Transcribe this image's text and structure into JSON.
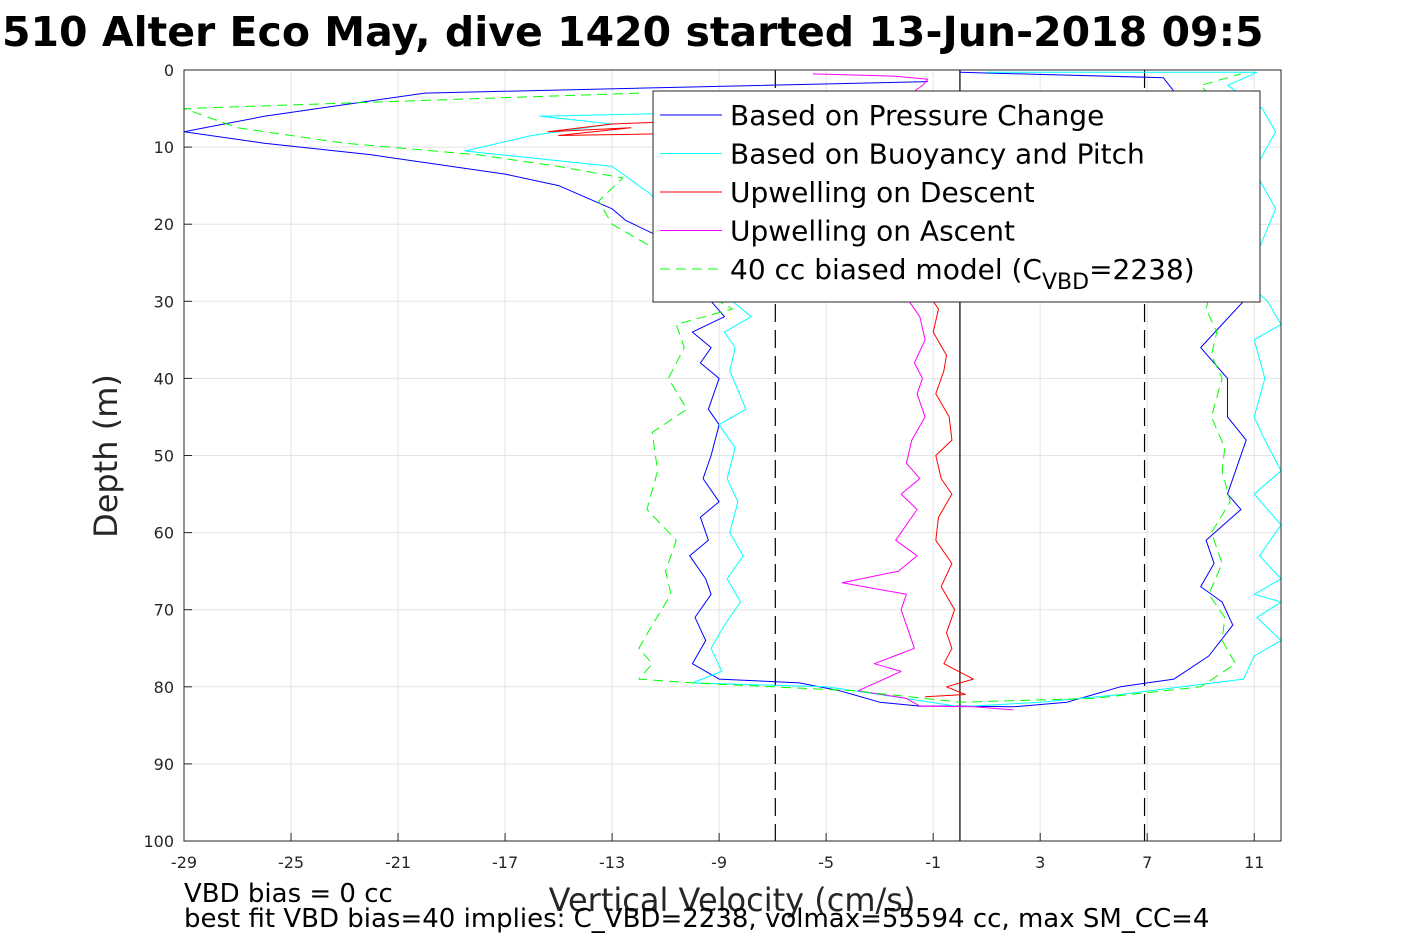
{
  "chart_data": {
    "type": "line",
    "title": "510 Alter Eco May, dive 1420 started 13-Jun-2018 09:5",
    "xlabel": "Vertical Velocity (cm/s)",
    "ylabel": "Depth (m)",
    "xlim": [
      -29,
      12
    ],
    "ylim": [
      0,
      100
    ],
    "y_reversed": true,
    "grid": true,
    "x_ticks": [
      -29,
      -25,
      -21,
      -17,
      -13,
      -9,
      -5,
      -1,
      3,
      7,
      11
    ],
    "y_ticks": [
      0,
      10,
      20,
      30,
      40,
      50,
      60,
      70,
      80,
      90,
      100
    ],
    "legend_position": "top-right",
    "legend": [
      {
        "label": "Based on Pressure Change",
        "color": "#0000ff",
        "dash": false
      },
      {
        "label": "Based on Buoyancy and Pitch",
        "color": "#00ffff",
        "dash": false
      },
      {
        "label": "Upwelling on Descent",
        "color": "#ff0000",
        "dash": false
      },
      {
        "label": "Upwelling on Ascent",
        "color": "#ff00ff",
        "dash": false
      },
      {
        "label_prefix": "40 cc biased model (C",
        "label_sub": "VBD",
        "label_suffix": "=2238)",
        "color": "#00ff00",
        "dash": true
      }
    ],
    "reference_lines": [
      {
        "x": -6.9,
        "style": "dashed",
        "color": "#000000"
      },
      {
        "x": 0,
        "style": "solid",
        "color": "#000000"
      },
      {
        "x": 6.9,
        "style": "dashed",
        "color": "#000000"
      }
    ],
    "series": [
      {
        "name": "Based on Pressure Change",
        "color": "#0000ff",
        "dash": false,
        "points": [
          [
            -1.2,
            1.5
          ],
          [
            -20,
            3
          ],
          [
            -26,
            6
          ],
          [
            -29,
            8
          ],
          [
            -26,
            9.5
          ],
          [
            -22,
            11
          ],
          [
            -17,
            13.5
          ],
          [
            -15,
            15
          ],
          [
            -13,
            18
          ],
          [
            -12.5,
            19.5
          ],
          [
            -11,
            22
          ],
          [
            -10,
            25
          ],
          [
            -9.5,
            28
          ],
          [
            -9.3,
            30
          ],
          [
            -8.8,
            32
          ],
          [
            -10,
            34
          ],
          [
            -9.3,
            36
          ],
          [
            -9.7,
            38
          ],
          [
            -9,
            40
          ],
          [
            -9.4,
            44
          ],
          [
            -9,
            46
          ],
          [
            -9.3,
            50
          ],
          [
            -9.6,
            53
          ],
          [
            -9,
            56
          ],
          [
            -9.7,
            58
          ],
          [
            -9.4,
            61
          ],
          [
            -10.1,
            63
          ],
          [
            -9.5,
            66
          ],
          [
            -9.3,
            68
          ],
          [
            -9.9,
            71
          ],
          [
            -9.5,
            74
          ],
          [
            -10,
            77
          ],
          [
            -9,
            79
          ],
          [
            -6,
            79.5
          ],
          [
            -4.5,
            80.5
          ],
          [
            -4,
            81
          ],
          [
            -3,
            82
          ],
          [
            -1.5,
            82.5
          ],
          [
            0,
            82.5
          ],
          [
            2,
            82.6
          ],
          [
            4,
            82
          ],
          [
            5,
            81
          ],
          [
            6,
            80
          ],
          [
            7,
            79.5
          ],
          [
            8,
            79
          ],
          [
            9.3,
            76
          ],
          [
            10.2,
            72
          ],
          [
            9.8,
            69
          ],
          [
            9,
            67
          ],
          [
            9.5,
            64
          ],
          [
            9.2,
            61
          ],
          [
            10.5,
            57
          ],
          [
            10,
            55
          ],
          [
            10.3,
            52
          ],
          [
            10.7,
            48
          ],
          [
            10,
            45
          ],
          [
            10,
            40
          ],
          [
            9,
            36
          ],
          [
            9.8,
            33
          ],
          [
            10.6,
            30
          ],
          [
            10.4,
            28
          ],
          [
            9.6,
            24
          ],
          [
            9.3,
            20
          ],
          [
            9.8,
            15
          ],
          [
            10.5,
            10
          ],
          [
            8.5,
            5
          ],
          [
            7.6,
            1
          ],
          [
            0,
            0.3
          ]
        ]
      },
      {
        "name": "Based on Buoyancy and Pitch",
        "color": "#00ffff",
        "dash": false,
        "points": [
          [
            -3,
            5
          ],
          [
            -15.7,
            6
          ],
          [
            -13,
            7
          ],
          [
            -16,
            8.5
          ],
          [
            -18.5,
            10.5
          ],
          [
            -13,
            12.5
          ],
          [
            -11.6,
            16
          ],
          [
            -10.5,
            20
          ],
          [
            -9,
            24
          ],
          [
            -8.7,
            27
          ],
          [
            -8.5,
            30
          ],
          [
            -7.8,
            32
          ],
          [
            -8.8,
            34
          ],
          [
            -8.4,
            36
          ],
          [
            -8.6,
            39
          ],
          [
            -8.0,
            44
          ],
          [
            -9.0,
            46
          ],
          [
            -8.4,
            49
          ],
          [
            -8.7,
            53
          ],
          [
            -8.3,
            56
          ],
          [
            -8.6,
            60
          ],
          [
            -8.1,
            63
          ],
          [
            -8.7,
            66
          ],
          [
            -8.2,
            69
          ],
          [
            -8.8,
            72
          ],
          [
            -9.3,
            75
          ],
          [
            -8.9,
            78
          ],
          [
            -10,
            79.5
          ],
          [
            -5,
            80
          ],
          [
            -3,
            81
          ],
          [
            0,
            82.6
          ],
          [
            3,
            82
          ],
          [
            6,
            81
          ],
          [
            10.6,
            79
          ],
          [
            11,
            76
          ],
          [
            12,
            74
          ],
          [
            11.1,
            71
          ],
          [
            12,
            69
          ],
          [
            11,
            68
          ],
          [
            12,
            66
          ],
          [
            11.2,
            63
          ],
          [
            12,
            59
          ],
          [
            11,
            55
          ],
          [
            12,
            52
          ],
          [
            11.4,
            48
          ],
          [
            11,
            45
          ],
          [
            11.4,
            40
          ],
          [
            11,
            35
          ],
          [
            12,
            33
          ],
          [
            11.5,
            30
          ],
          [
            10.5,
            27
          ],
          [
            11.2,
            23
          ],
          [
            11.8,
            18
          ],
          [
            11,
            13
          ],
          [
            11.8,
            8
          ],
          [
            11.3,
            5
          ],
          [
            10,
            2
          ],
          [
            11.1,
            0.3
          ],
          [
            1,
            0.3
          ]
        ]
      },
      {
        "name": "Upwelling on Descent",
        "color": "#ff0000",
        "dash": false,
        "points": [
          [
            -2,
            5.5
          ],
          [
            -13,
            7
          ],
          [
            -15.4,
            8
          ],
          [
            -12.3,
            7.5
          ],
          [
            -15,
            8.5
          ],
          [
            -6,
            8
          ],
          [
            -2.5,
            11
          ],
          [
            -2,
            14
          ],
          [
            -1.5,
            18
          ],
          [
            -1.2,
            22
          ],
          [
            -1.6,
            26
          ],
          [
            -1.2,
            29
          ],
          [
            -0.8,
            31
          ],
          [
            -1.0,
            34
          ],
          [
            -0.5,
            37
          ],
          [
            -0.6,
            39
          ],
          [
            -0.9,
            42
          ],
          [
            -0.4,
            45
          ],
          [
            -0.3,
            48
          ],
          [
            -0.9,
            50
          ],
          [
            -0.7,
            53
          ],
          [
            -0.3,
            55
          ],
          [
            -0.8,
            58
          ],
          [
            -0.9,
            61
          ],
          [
            -0.3,
            64
          ],
          [
            -0.7,
            67
          ],
          [
            -0.2,
            70
          ],
          [
            -0.5,
            73
          ],
          [
            -0.3,
            75
          ],
          [
            -0.6,
            77
          ],
          [
            0.5,
            79
          ],
          [
            -0.5,
            80
          ],
          [
            0.2,
            81
          ],
          [
            -1.3,
            81.3
          ]
        ]
      },
      {
        "name": "Upwelling on Ascent",
        "color": "#ff00ff",
        "dash": false,
        "points": [
          [
            2,
            83
          ],
          [
            0.5,
            82.6
          ],
          [
            -1.5,
            82.5
          ],
          [
            -2,
            81.5
          ],
          [
            -3.8,
            80.5
          ],
          [
            -2.2,
            78
          ],
          [
            -3.2,
            77
          ],
          [
            -1.7,
            75
          ],
          [
            -1.9,
            73
          ],
          [
            -2.2,
            70
          ],
          [
            -2.0,
            68
          ],
          [
            -4.4,
            66.5
          ],
          [
            -2.3,
            65
          ],
          [
            -1.6,
            63
          ],
          [
            -2.4,
            61
          ],
          [
            -2.0,
            59
          ],
          [
            -1.6,
            57
          ],
          [
            -2.2,
            55
          ],
          [
            -1.5,
            53
          ],
          [
            -2.0,
            51
          ],
          [
            -1.8,
            48
          ],
          [
            -1.3,
            45
          ],
          [
            -1.6,
            42
          ],
          [
            -1.4,
            40
          ],
          [
            -1.7,
            38
          ],
          [
            -1.3,
            35
          ],
          [
            -1.5,
            32
          ],
          [
            -1.9,
            30
          ],
          [
            -1.3,
            28
          ],
          [
            -1.9,
            26
          ],
          [
            -1.4,
            22
          ],
          [
            -1.7,
            20
          ],
          [
            -1.3,
            16
          ],
          [
            -1.5,
            12
          ],
          [
            -1.0,
            8
          ],
          [
            -1.1,
            5
          ],
          [
            -1.8,
            3
          ],
          [
            -1.4,
            2
          ],
          [
            -1.2,
            1.2
          ],
          [
            -2.4,
            0.8
          ],
          [
            -5.5,
            0.5
          ]
        ]
      },
      {
        "name": "40 cc biased model",
        "color": "#00ff00",
        "dash": true,
        "points": [
          [
            -12,
            3
          ],
          [
            -29,
            5
          ],
          [
            -27,
            7.5
          ],
          [
            -23,
            9.5
          ],
          [
            -18,
            11
          ],
          [
            -15,
            12.5
          ],
          [
            -12.6,
            14
          ],
          [
            -13.5,
            17
          ],
          [
            -13,
            20
          ],
          [
            -11.5,
            23
          ],
          [
            -10.5,
            26
          ],
          [
            -9.5,
            29
          ],
          [
            -8.5,
            31
          ],
          [
            -10.6,
            33
          ],
          [
            -10.3,
            36
          ],
          [
            -10.9,
            40
          ],
          [
            -10.2,
            44
          ],
          [
            -11.5,
            47
          ],
          [
            -11.3,
            52
          ],
          [
            -11.7,
            57
          ],
          [
            -10.6,
            61
          ],
          [
            -11.0,
            65
          ],
          [
            -10.8,
            68
          ],
          [
            -11.5,
            72
          ],
          [
            -12.0,
            75
          ],
          [
            -11.5,
            77
          ],
          [
            -12.0,
            79
          ],
          [
            -10,
            79.5
          ],
          [
            -4,
            80.5
          ],
          [
            0,
            82
          ],
          [
            5,
            81.5
          ],
          [
            9,
            80
          ],
          [
            10.3,
            77
          ],
          [
            9.8,
            74
          ],
          [
            9.9,
            71
          ],
          [
            9.3,
            68
          ],
          [
            9.8,
            64
          ],
          [
            9.4,
            60
          ],
          [
            10.1,
            56
          ],
          [
            9.8,
            52
          ],
          [
            9.9,
            49
          ],
          [
            9.4,
            45
          ],
          [
            9.8,
            40
          ],
          [
            9.4,
            37
          ],
          [
            9.6,
            34
          ],
          [
            9.2,
            31
          ],
          [
            9.5,
            27
          ],
          [
            9.2,
            23
          ],
          [
            9.8,
            18
          ],
          [
            9.5,
            13
          ],
          [
            8.8,
            8
          ],
          [
            9.8,
            5
          ],
          [
            9,
            2
          ],
          [
            10.5,
            0.5
          ]
        ]
      }
    ]
  },
  "footer": {
    "line1": "VBD bias = 0 cc",
    "line2": "best fit VBD bias=40 implies: C_VBD=2238, volmax=55594 cc, max SM_CC=4"
  }
}
